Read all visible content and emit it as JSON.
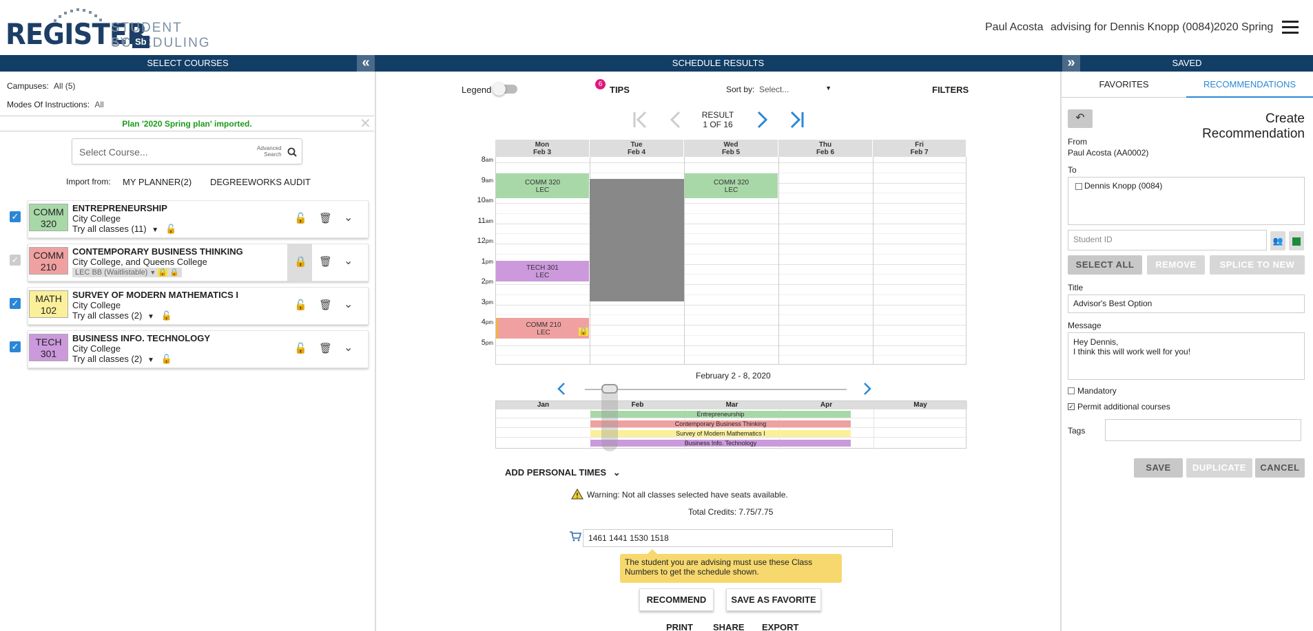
{
  "header": {
    "logo_main": "REGISTER",
    "logo_sub": "STUDENT SCHEDULING",
    "logo_by": "BY",
    "logo_mark": "Sb",
    "user_name": "Paul Acosta",
    "advising_for": "advising for Dennis Knopp (0084)",
    "term": "2020 Spring"
  },
  "left": {
    "bar_title": "SELECT COURSES",
    "campuses_label": "Campuses:",
    "campuses_value": "All (5)",
    "modes_label": "Modes Of Instructions:",
    "modes_value": "All",
    "import_notice": "Plan '2020 Spring plan' imported.",
    "search_placeholder": "Select Course...",
    "advanced_search_line1": "Advanced",
    "advanced_search_line2": "Search",
    "import_from_label": "Import from:",
    "import_planner": "MY PLANNER(2)",
    "import_degreeworks": "DEGREEWORKS AUDIT",
    "courses": [
      {
        "code1": "COMM",
        "code2": "320",
        "title": "ENTREPRENEURSHIP",
        "campus": "City College",
        "option": "Try all classes (11)",
        "color": "#a8d8a8"
      },
      {
        "code1": "COMM",
        "code2": "210",
        "title": "CONTEMPORARY BUSINESS THINKING",
        "campus": "City College, and Queens College",
        "option": "LEC BB (Waitlistable)",
        "color": "#f0a0a0"
      },
      {
        "code1": "MATH",
        "code2": "102",
        "title": "SURVEY OF MODERN MATHEMATICS I",
        "campus": "City College",
        "option": "Try all classes (2)",
        "color": "#fbf09a"
      },
      {
        "code1": "TECH",
        "code2": "301",
        "title": "BUSINESS INFO. TECHNOLOGY",
        "campus": "City College",
        "option": "Try all classes (2)",
        "color": "#cc99dd"
      }
    ]
  },
  "center": {
    "bar_title": "SCHEDULE RESULTS",
    "legend_label": "Legend",
    "tips_badge": "6",
    "tips_label": "TIPS",
    "sort_label": "Sort by:",
    "sort_value": "Select...",
    "filters_label": "FILTERS",
    "result_line1": "RESULT",
    "result_line2": "1 OF 16",
    "days": [
      {
        "name": "Mon",
        "date": "Feb 3"
      },
      {
        "name": "Tue",
        "date": "Feb 4"
      },
      {
        "name": "Wed",
        "date": "Feb 5"
      },
      {
        "name": "Thu",
        "date": "Feb 6"
      },
      {
        "name": "Fri",
        "date": "Feb 7"
      }
    ],
    "hours": [
      {
        "h": "8",
        "ap": "am"
      },
      {
        "h": "9",
        "ap": "am"
      },
      {
        "h": "10",
        "ap": "am"
      },
      {
        "h": "11",
        "ap": "am"
      },
      {
        "h": "12",
        "ap": "pm"
      },
      {
        "h": "1",
        "ap": "pm"
      },
      {
        "h": "2",
        "ap": "pm"
      },
      {
        "h": "3",
        "ap": "pm"
      },
      {
        "h": "4",
        "ap": "pm"
      },
      {
        "h": "5",
        "ap": "pm"
      }
    ],
    "events": [
      {
        "line1": "COMM 320",
        "line2": "LEC",
        "color": "#a8d8a8"
      },
      {
        "line1": "COMM 320",
        "line2": "LEC",
        "color": "#a8d8a8"
      },
      {
        "line1": "TECH 301",
        "line2": "LEC",
        "color": "#cc99dd"
      },
      {
        "line1": "COMM 210",
        "line2": "LEC",
        "color": "#f0a0a0"
      }
    ],
    "week_range": "February 2 - 8, 2020",
    "months": [
      "Jan",
      "Feb",
      "Mar",
      "Apr",
      "May"
    ],
    "timeline_bars": [
      {
        "label": "Entrepreneurship",
        "color": "#a8d8a8"
      },
      {
        "label": "Contemporary Business Thinking",
        "color": "#f0a0a0"
      },
      {
        "label": "Survey of Modern Mathematics I",
        "color": "#fbf09a"
      },
      {
        "label": "Business Info. Technology",
        "color": "#cc99dd"
      }
    ],
    "add_personal_times": "ADD PERSONAL TIMES",
    "warning": "Warning: Not all classes selected have seats available.",
    "total_credits": "Total Credits: 7.75/7.75",
    "class_numbers": "1461 1441 1530 1518",
    "tooltip": "The student you are advising must use these Class Numbers to get the schedule shown.",
    "recommend_btn": "RECOMMEND",
    "save_favorite_btn": "SAVE AS FAVORITE",
    "print_btn": "PRINT",
    "share_btn": "SHARE",
    "export_btn": "EXPORT"
  },
  "right": {
    "bar_title": "SAVED",
    "tab_favorites": "FAVORITES",
    "tab_recommendations": "RECOMMENDATIONS",
    "create_title": "Create Recommendation",
    "from_label": "From",
    "from_value": "Paul Acosta (AA0002)",
    "to_label": "To",
    "to_student": "Dennis Knopp (0084)",
    "student_id_placeholder": "Student ID",
    "select_all": "SELECT ALL",
    "remove": "REMOVE",
    "splice": "SPLICE TO NEW",
    "title_label": "Title",
    "title_value": "Advisor's Best Option",
    "message_label": "Message",
    "message_line1": "Hey Dennis,",
    "message_line2": "I think this will work well for you!",
    "mandatory_label": "Mandatory",
    "permit_label": "Permit additional courses",
    "tags_label": "Tags",
    "save_btn": "SAVE",
    "duplicate_btn": "DUPLICATE",
    "cancel_btn": "CANCEL"
  },
  "colors": {
    "navy": "#123e66",
    "accent_blue": "#2b87d6",
    "tips_badge": "#e0177a",
    "tooltip_bg": "#f6d86e"
  }
}
